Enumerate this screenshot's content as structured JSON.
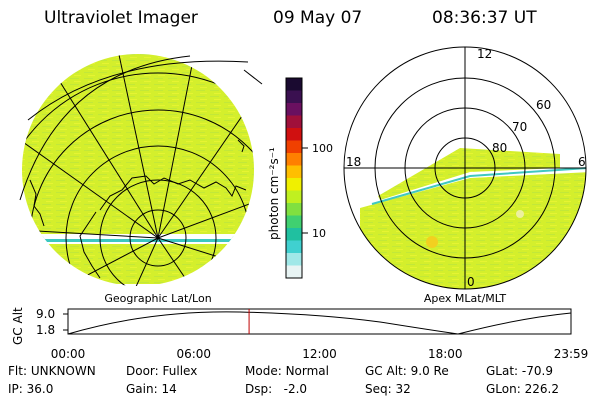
{
  "header": {
    "instrument": "Ultraviolet Imager",
    "date": "09 May 07",
    "time": "08:36:37 UT"
  },
  "colorbar": {
    "unit_label": "photon cm⁻²s⁻¹",
    "tick_labels": [
      "100",
      "10"
    ],
    "colors": [
      "#1a0a30",
      "#3a1050",
      "#6a1060",
      "#a0103a",
      "#d01010",
      "#f04000",
      "#ff8000",
      "#ffbf00",
      "#f0f000",
      "#c0f020",
      "#80e040",
      "#40d070",
      "#20c0a0",
      "#40d0d0",
      "#a0e8e8",
      "#e8f4f4"
    ]
  },
  "left_panel": {
    "caption": "Geographic Lat/Lon",
    "fill_color": "#d4ef2c"
  },
  "right_panel": {
    "caption": "Apex MLat/MLT",
    "mlt_labels": {
      "top": "12",
      "left": "18",
      "right": "6",
      "bottom": "0"
    },
    "lat_labels": [
      "60",
      "70",
      "80"
    ],
    "fill_color": "#d4ef2c"
  },
  "altitude_plot": {
    "ylabel": "GC Alt",
    "y_ticks": [
      "9.0",
      "1.8"
    ],
    "x_ticks": [
      "00:00",
      "06:00",
      "12:00",
      "18:00",
      "23:59"
    ],
    "current_time_fraction": 0.36,
    "marker_color": "#c00000"
  },
  "status": {
    "row1": [
      {
        "label": "Flt:",
        "value": "UNKNOWN"
      },
      {
        "label": "Door:",
        "value": "Fullex"
      },
      {
        "label": "Mode:",
        "value": "Normal"
      },
      {
        "label": "GC Alt:",
        "value": "9.0 Re"
      },
      {
        "label": "GLat:",
        "value": "-70.9"
      }
    ],
    "row2": [
      {
        "label": "IP:",
        "value": "36.0"
      },
      {
        "label": "Gain:",
        "value": "14"
      },
      {
        "label": "Dsp:",
        "value": "-2.0"
      },
      {
        "label": "Seq:",
        "value": "32"
      },
      {
        "label": "GLon:",
        "value": "226.2"
      }
    ]
  }
}
